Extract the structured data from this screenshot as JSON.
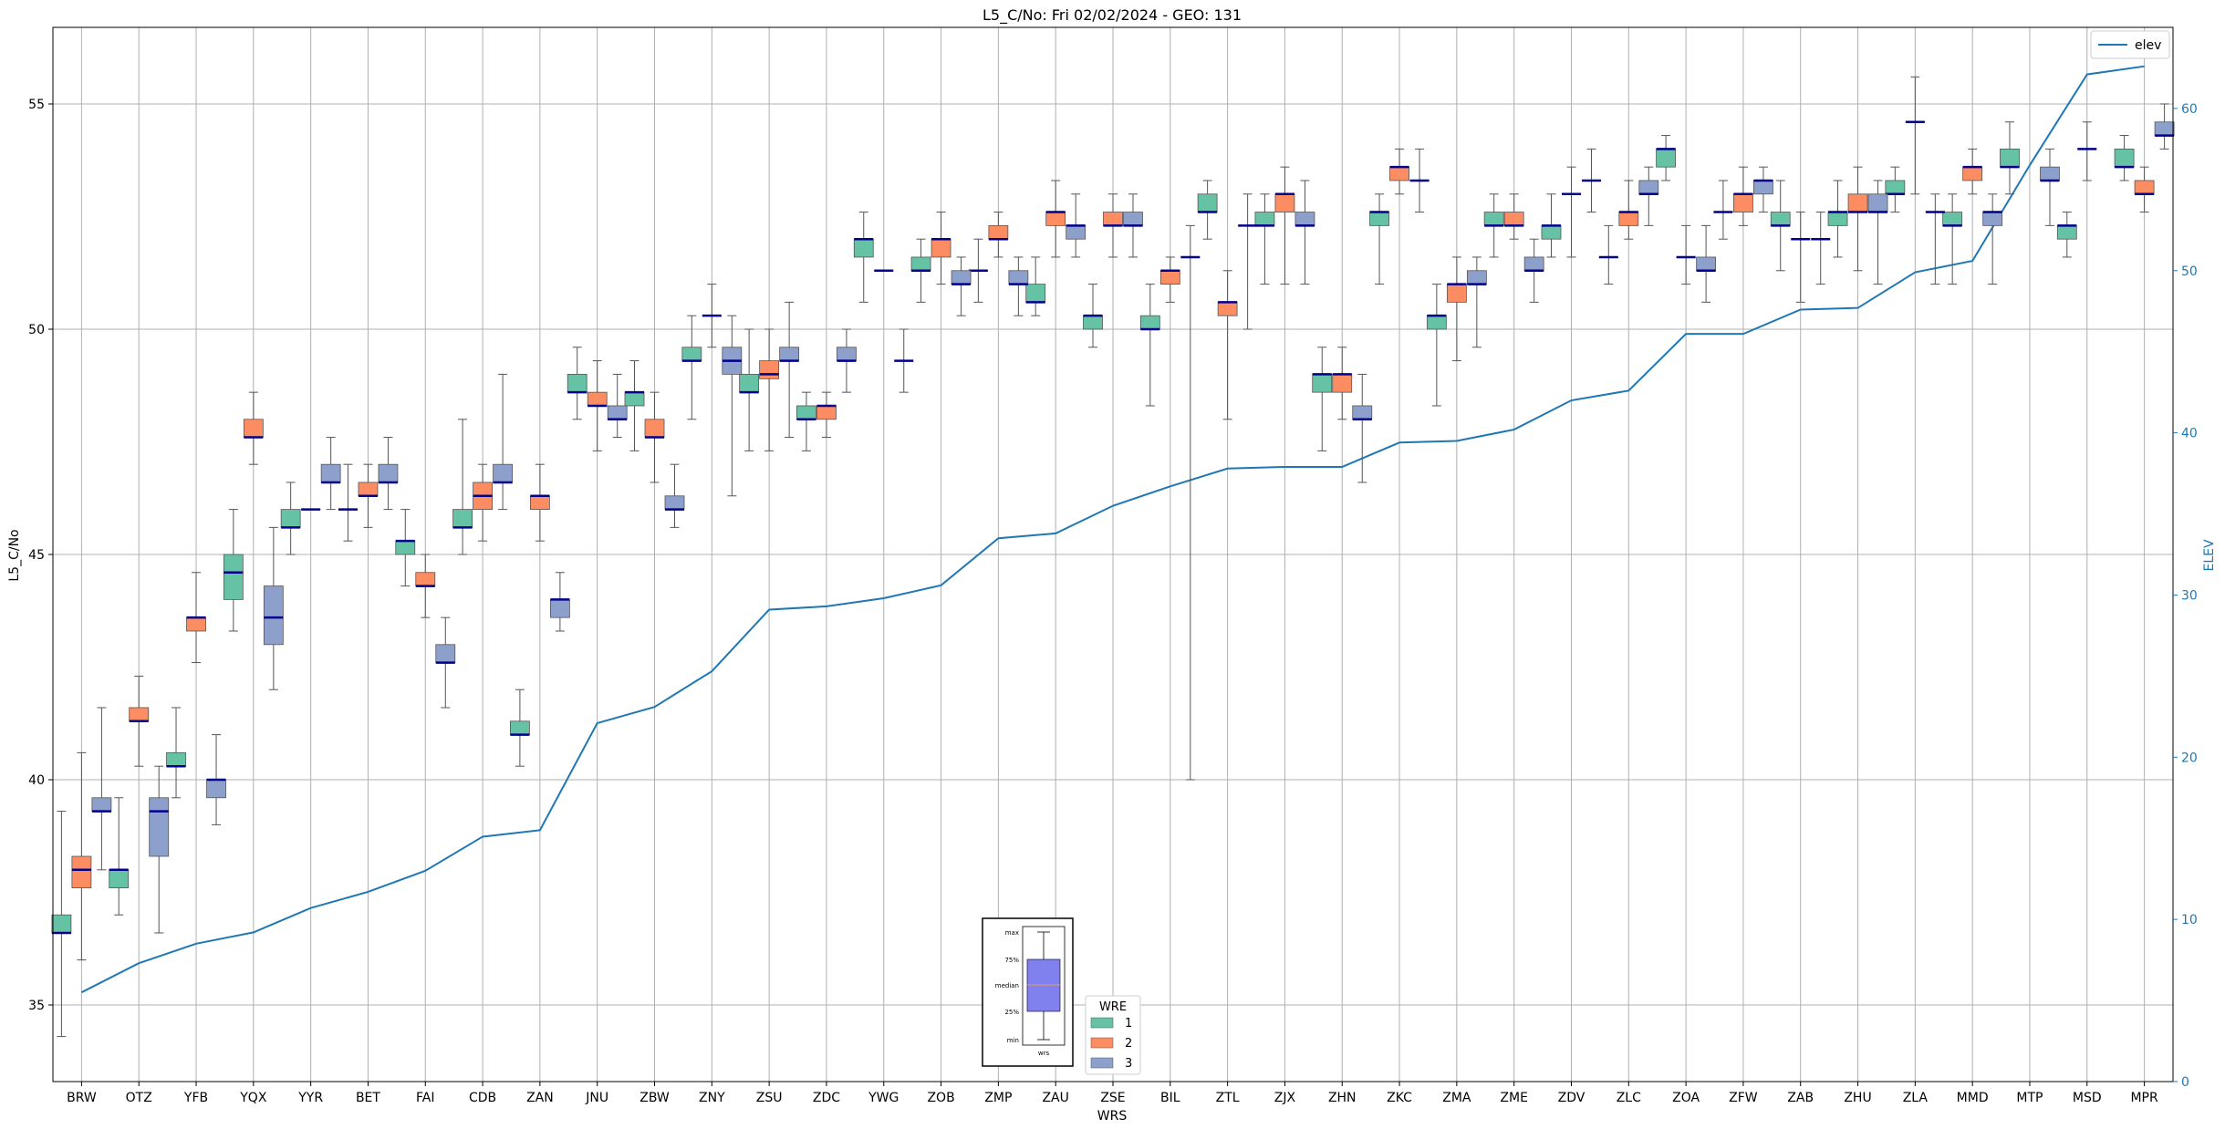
{
  "chart_data": {
    "type": "box",
    "title": "L5_C/No: Fri 02/02/2024 - GEO: 131",
    "xlabel": "WRS",
    "ylabel": "L5_C/No",
    "y2label": "ELEV",
    "ylim": [
      33.3,
      56.7
    ],
    "y2lim": [
      0,
      65
    ],
    "yticks": [
      35,
      40,
      45,
      50,
      55
    ],
    "y2ticks": [
      0,
      10,
      20,
      30,
      40,
      50,
      60
    ],
    "grid": true,
    "colors": {
      "wre1": "#66c2a5",
      "wre2": "#fc8d62",
      "wre3": "#8da0cb",
      "elev": "#1f77b4",
      "median": "#00008b",
      "whisker": "#555555"
    },
    "categories": [
      "BRW",
      "OTZ",
      "YFB",
      "YQX",
      "YYR",
      "BET",
      "FAI",
      "CDB",
      "ZAN",
      "JNU",
      "ZBW",
      "ZNY",
      "ZSU",
      "ZDC",
      "YWG",
      "ZOB",
      "ZMP",
      "ZAU",
      "ZSE",
      "BIL",
      "ZTL",
      "ZJX",
      "ZHN",
      "ZKC",
      "ZMA",
      "ZME",
      "ZDV",
      "ZLC",
      "ZOA",
      "ZFW",
      "ZAB",
      "ZHU",
      "ZLA",
      "MMD",
      "MTP",
      "MSD",
      "MPR"
    ],
    "elev_series": {
      "name": "elev",
      "values": [
        5.5,
        7.3,
        8.5,
        9.2,
        10.7,
        11.7,
        13,
        15.1,
        15.5,
        22.1,
        23.1,
        25.3,
        29.1,
        29.3,
        29.8,
        30.6,
        33.5,
        33.8,
        35.5,
        36.7,
        37.8,
        37.9,
        37.9,
        39.4,
        39.5,
        40.2,
        42,
        42.6,
        46.1,
        46.1,
        47.6,
        47.7,
        49.9,
        50.6,
        56.5,
        62.1,
        62.6
      ]
    },
    "box_series": [
      {
        "name": "1",
        "boxes": [
          {
            "min": 34.3,
            "q1": 36.6,
            "med": 36.6,
            "q3": 37.0,
            "max": 39.3
          },
          {
            "min": 37.0,
            "q1": 37.6,
            "med": 38.0,
            "q3": 38.0,
            "max": 39.6
          },
          {
            "min": 39.6,
            "q1": 40.3,
            "med": 40.3,
            "q3": 40.6,
            "max": 41.6
          },
          {
            "min": 43.3,
            "q1": 44.0,
            "med": 44.6,
            "q3": 45.0,
            "max": 46.0
          },
          {
            "min": 45.0,
            "q1": 45.6,
            "med": 45.6,
            "q3": 46.0,
            "max": 46.6
          },
          {
            "min": 45.3,
            "q1": 46.0,
            "med": 46.0,
            "q3": 46.0,
            "max": 47.0
          },
          {
            "min": 44.3,
            "q1": 45.0,
            "med": 45.3,
            "q3": 45.3,
            "max": 46.0
          },
          {
            "min": 45.0,
            "q1": 45.6,
            "med": 45.6,
            "q3": 46.0,
            "max": 48.0
          },
          {
            "min": 40.3,
            "q1": 41.0,
            "med": 41.0,
            "q3": 41.3,
            "max": 42.0
          },
          {
            "min": 48.0,
            "q1": 48.6,
            "med": 48.6,
            "q3": 49.0,
            "max": 49.6
          },
          {
            "min": 47.3,
            "q1": 48.3,
            "med": 48.6,
            "q3": 48.6,
            "max": 49.3
          },
          {
            "min": 48.0,
            "q1": 49.3,
            "med": 49.3,
            "q3": 49.6,
            "max": 50.3
          },
          {
            "min": 47.3,
            "q1": 48.6,
            "med": 48.6,
            "q3": 49.0,
            "max": 50.0
          },
          {
            "min": 47.3,
            "q1": 48.0,
            "med": 48.0,
            "q3": 48.3,
            "max": 48.6
          },
          {
            "min": 50.6,
            "q1": 51.6,
            "med": 52.0,
            "q3": 52.0,
            "max": 52.6
          },
          {
            "min": 50.6,
            "q1": 51.3,
            "med": 51.3,
            "q3": 51.6,
            "max": 52.0
          },
          {
            "min": 50.6,
            "q1": 51.3,
            "med": 51.3,
            "q3": 51.3,
            "max": 52.0
          },
          {
            "min": 50.3,
            "q1": 50.6,
            "med": 50.6,
            "q3": 51.0,
            "max": 51.6
          },
          {
            "min": 49.6,
            "q1": 50.0,
            "med": 50.3,
            "q3": 50.3,
            "max": 51.0
          },
          {
            "min": 48.3,
            "q1": 50.0,
            "med": 50.0,
            "q3": 50.3,
            "max": 51.0
          },
          {
            "min": 52.0,
            "q1": 52.6,
            "med": 52.6,
            "q3": 53.0,
            "max": 53.3
          },
          {
            "min": 51.0,
            "q1": 52.3,
            "med": 52.3,
            "q3": 52.6,
            "max": 53.0
          },
          {
            "min": 47.3,
            "q1": 48.6,
            "med": 49.0,
            "q3": 49.0,
            "max": 49.6
          },
          {
            "min": 51.0,
            "q1": 52.3,
            "med": 52.6,
            "q3": 52.6,
            "max": 53.0
          },
          {
            "min": 48.3,
            "q1": 50.0,
            "med": 50.3,
            "q3": 50.3,
            "max": 51.0
          },
          {
            "min": 51.6,
            "q1": 52.3,
            "med": 52.3,
            "q3": 52.6,
            "max": 53.0
          },
          {
            "min": 51.6,
            "q1": 52.0,
            "med": 52.3,
            "q3": 52.3,
            "max": 53.0
          },
          {
            "min": 51.0,
            "q1": 51.6,
            "med": 51.6,
            "q3": 51.6,
            "max": 52.3
          },
          {
            "min": 53.3,
            "q1": 53.6,
            "med": 54.0,
            "q3": 54.0,
            "max": 54.3
          },
          {
            "min": 52.0,
            "q1": 52.6,
            "med": 52.6,
            "q3": 52.6,
            "max": 53.3
          },
          {
            "min": 51.3,
            "q1": 52.3,
            "med": 52.3,
            "q3": 52.6,
            "max": 53.3
          },
          {
            "min": 51.6,
            "q1": 52.3,
            "med": 52.6,
            "q3": 52.6,
            "max": 53.3
          },
          {
            "min": 52.6,
            "q1": 53.0,
            "med": 53.0,
            "q3": 53.3,
            "max": 53.6
          },
          {
            "min": 51.0,
            "q1": 52.3,
            "med": 52.3,
            "q3": 52.6,
            "max": 53.0
          },
          {
            "min": 53.0,
            "q1": 53.6,
            "med": 53.6,
            "q3": 54.0,
            "max": 54.6
          },
          {
            "min": 51.6,
            "q1": 52.0,
            "med": 52.3,
            "q3": 52.3,
            "max": 52.6
          },
          {
            "min": 53.3,
            "q1": 53.6,
            "med": 53.6,
            "q3": 54.0,
            "max": 54.3
          }
        ]
      },
      {
        "name": "2",
        "boxes": [
          {
            "min": 36.0,
            "q1": 37.6,
            "med": 38.0,
            "q3": 38.3,
            "max": 40.6
          },
          {
            "min": 40.3,
            "q1": 41.3,
            "med": 41.3,
            "q3": 41.6,
            "max": 42.3
          },
          {
            "min": 42.6,
            "q1": 43.3,
            "med": 43.6,
            "q3": 43.6,
            "max": 44.6
          },
          {
            "min": 47.0,
            "q1": 47.6,
            "med": 47.6,
            "q3": 48.0,
            "max": 48.6
          },
          {
            "min": null,
            "q1": 46.0,
            "med": 46.0,
            "q3": 46.0,
            "max": null
          },
          {
            "min": 45.6,
            "q1": 46.3,
            "med": 46.3,
            "q3": 46.6,
            "max": 47.0
          },
          {
            "min": 43.6,
            "q1": 44.3,
            "med": 44.3,
            "q3": 44.6,
            "max": 45.0
          },
          {
            "min": 45.3,
            "q1": 46.0,
            "med": 46.3,
            "q3": 46.6,
            "max": 47.0
          },
          {
            "min": 45.3,
            "q1": 46.0,
            "med": 46.3,
            "q3": 46.3,
            "max": 47.0
          },
          {
            "min": 47.3,
            "q1": 48.3,
            "med": 48.3,
            "q3": 48.6,
            "max": 49.3
          },
          {
            "min": 46.6,
            "q1": 47.6,
            "med": 47.6,
            "q3": 48.0,
            "max": 48.6
          },
          {
            "min": 49.6,
            "q1": 50.3,
            "med": 50.3,
            "q3": 50.3,
            "max": 51.0
          },
          {
            "min": 47.3,
            "q1": 48.9,
            "med": 49.0,
            "q3": 49.3,
            "max": 50.0
          },
          {
            "min": 47.6,
            "q1": 48.0,
            "med": 48.3,
            "q3": 48.3,
            "max": 48.6
          },
          {
            "min": null,
            "q1": 51.3,
            "med": 51.3,
            "q3": 51.3,
            "max": null
          },
          {
            "min": 51.0,
            "q1": 51.6,
            "med": 52.0,
            "q3": 52.0,
            "max": 52.6
          },
          {
            "min": 51.6,
            "q1": 52.0,
            "med": 52.0,
            "q3": 52.3,
            "max": 52.6
          },
          {
            "min": 51.6,
            "q1": 52.3,
            "med": 52.6,
            "q3": 52.6,
            "max": 53.3
          },
          {
            "min": 51.6,
            "q1": 52.3,
            "med": 52.3,
            "q3": 52.6,
            "max": 53.0
          },
          {
            "min": 50.6,
            "q1": 51.0,
            "med": 51.3,
            "q3": 51.3,
            "max": 51.6
          },
          {
            "min": 48.0,
            "q1": 50.3,
            "med": 50.6,
            "q3": 50.6,
            "max": 51.3
          },
          {
            "min": 51.0,
            "q1": 52.6,
            "med": 53.0,
            "q3": 53.0,
            "max": 53.6
          },
          {
            "min": 48.0,
            "q1": 48.6,
            "med": 49.0,
            "q3": 49.0,
            "max": 49.6
          },
          {
            "min": 53.0,
            "q1": 53.3,
            "med": 53.6,
            "q3": 53.6,
            "max": 54.0
          },
          {
            "min": 49.3,
            "q1": 50.6,
            "med": 51.0,
            "q3": 51.0,
            "max": 51.6
          },
          {
            "min": 52.0,
            "q1": 52.3,
            "med": 52.3,
            "q3": 52.6,
            "max": 53.0
          },
          {
            "min": 51.6,
            "q1": 53.0,
            "med": 53.0,
            "q3": 53.0,
            "max": 53.6
          },
          {
            "min": 52.0,
            "q1": 52.3,
            "med": 52.6,
            "q3": 52.6,
            "max": 53.3
          },
          {
            "min": 51.0,
            "q1": 51.6,
            "med": 51.6,
            "q3": 51.6,
            "max": 52.3
          },
          {
            "min": 52.3,
            "q1": 52.6,
            "med": 53.0,
            "q3": 53.0,
            "max": 53.6
          },
          {
            "min": 50.6,
            "q1": 52.0,
            "med": 52.0,
            "q3": 52.0,
            "max": 52.6
          },
          {
            "min": 51.3,
            "q1": 52.6,
            "med": 52.6,
            "q3": 53.0,
            "max": 53.6
          },
          {
            "min": 53.0,
            "q1": 54.6,
            "med": 54.6,
            "q3": 54.6,
            "max": 55.6
          },
          {
            "min": 53.0,
            "q1": 53.3,
            "med": 53.6,
            "q3": 53.6,
            "max": 54.0
          },
          {
            "min": null,
            "q1": null,
            "med": null,
            "q3": null,
            "max": null
          },
          {
            "min": 53.3,
            "q1": 54.0,
            "med": 54.0,
            "q3": 54.0,
            "max": 54.6
          },
          {
            "min": 52.6,
            "q1": 53.0,
            "med": 53.0,
            "q3": 53.3,
            "max": 53.6
          }
        ]
      },
      {
        "name": "3",
        "boxes": [
          {
            "min": 38.0,
            "q1": 39.3,
            "med": 39.3,
            "q3": 39.6,
            "max": 41.6
          },
          {
            "min": 36.6,
            "q1": 38.3,
            "med": 39.3,
            "q3": 39.6,
            "max": 40.3
          },
          {
            "min": 39.0,
            "q1": 39.6,
            "med": 40.0,
            "q3": 40.0,
            "max": 41.0
          },
          {
            "min": 42.0,
            "q1": 43.0,
            "med": 43.6,
            "q3": 44.3,
            "max": 45.6
          },
          {
            "min": 46.0,
            "q1": 46.6,
            "med": 46.6,
            "q3": 47.0,
            "max": 47.6
          },
          {
            "min": 46.0,
            "q1": 46.6,
            "med": 46.6,
            "q3": 47.0,
            "max": 47.6
          },
          {
            "min": 41.6,
            "q1": 42.6,
            "med": 42.6,
            "q3": 43.0,
            "max": 43.6
          },
          {
            "min": 46.0,
            "q1": 46.6,
            "med": 46.6,
            "q3": 47.0,
            "max": 49.0
          },
          {
            "min": 43.3,
            "q1": 43.6,
            "med": 44.0,
            "q3": 44.0,
            "max": 44.6
          },
          {
            "min": 47.6,
            "q1": 48.0,
            "med": 48.0,
            "q3": 48.3,
            "max": 49.0
          },
          {
            "min": 45.6,
            "q1": 46.0,
            "med": 46.0,
            "q3": 46.3,
            "max": 47.0
          },
          {
            "min": 46.3,
            "q1": 49.0,
            "med": 49.3,
            "q3": 49.6,
            "max": 50.3
          },
          {
            "min": 47.6,
            "q1": 49.3,
            "med": 49.3,
            "q3": 49.6,
            "max": 50.6
          },
          {
            "min": 48.6,
            "q1": 49.3,
            "med": 49.3,
            "q3": 49.6,
            "max": 50.0
          },
          {
            "min": 48.6,
            "q1": 49.3,
            "med": 49.3,
            "q3": 49.3,
            "max": 50.0
          },
          {
            "min": 50.3,
            "q1": 51.0,
            "med": 51.0,
            "q3": 51.3,
            "max": 51.6
          },
          {
            "min": 50.3,
            "q1": 51.0,
            "med": 51.0,
            "q3": 51.3,
            "max": 51.6
          },
          {
            "min": 51.6,
            "q1": 52.0,
            "med": 52.3,
            "q3": 52.3,
            "max": 53.0
          },
          {
            "min": 51.6,
            "q1": 52.3,
            "med": 52.3,
            "q3": 52.6,
            "max": 53.0
          },
          {
            "min": 40.0,
            "q1": 51.6,
            "med": 51.6,
            "q3": 51.6,
            "max": 52.3
          },
          {
            "min": 50.0,
            "q1": 52.3,
            "med": 52.3,
            "q3": 52.3,
            "max": 53.0
          },
          {
            "min": 51.0,
            "q1": 52.3,
            "med": 52.3,
            "q3": 52.6,
            "max": 53.3
          },
          {
            "min": 46.6,
            "q1": 48.0,
            "med": 48.0,
            "q3": 48.3,
            "max": 49.0
          },
          {
            "min": 52.6,
            "q1": 53.3,
            "med": 53.3,
            "q3": 53.3,
            "max": 54.0
          },
          {
            "min": 49.6,
            "q1": 51.0,
            "med": 51.0,
            "q3": 51.3,
            "max": 51.6
          },
          {
            "min": 50.6,
            "q1": 51.3,
            "med": 51.3,
            "q3": 51.6,
            "max": 52.0
          },
          {
            "min": 52.6,
            "q1": 53.3,
            "med": 53.3,
            "q3": 53.3,
            "max": 54.0
          },
          {
            "min": 52.3,
            "q1": 53.0,
            "med": 53.0,
            "q3": 53.3,
            "max": 53.6
          },
          {
            "min": 50.6,
            "q1": 51.3,
            "med": 51.3,
            "q3": 51.6,
            "max": 52.3
          },
          {
            "min": 52.6,
            "q1": 53.0,
            "med": 53.3,
            "q3": 53.3,
            "max": 53.6
          },
          {
            "min": 51.0,
            "q1": 52.0,
            "med": 52.0,
            "q3": 52.0,
            "max": 52.6
          },
          {
            "min": 51.0,
            "q1": 52.6,
            "med": 52.6,
            "q3": 53.0,
            "max": 53.3
          },
          {
            "min": 51.0,
            "q1": 52.6,
            "med": 52.6,
            "q3": 52.6,
            "max": 53.0
          },
          {
            "min": 51.0,
            "q1": 52.3,
            "med": 52.6,
            "q3": 52.6,
            "max": 53.0
          },
          {
            "min": 52.3,
            "q1": 53.3,
            "med": 53.3,
            "q3": 53.6,
            "max": 54.0
          },
          {
            "min": null,
            "q1": null,
            "med": null,
            "q3": null,
            "max": null
          },
          {
            "min": 54.0,
            "q1": 54.3,
            "med": 54.3,
            "q3": 54.6,
            "max": 55.0
          }
        ]
      }
    ],
    "legend": {
      "title": "WRE",
      "entries": [
        "1",
        "2",
        "3"
      ],
      "placement": "bottom-center"
    },
    "elev_legend": {
      "entries": [
        "elev"
      ],
      "placement": "top-right"
    },
    "inset": {
      "labels": [
        "max",
        "75%",
        "median",
        "25%",
        "min"
      ],
      "xlabel": "wrs"
    }
  }
}
